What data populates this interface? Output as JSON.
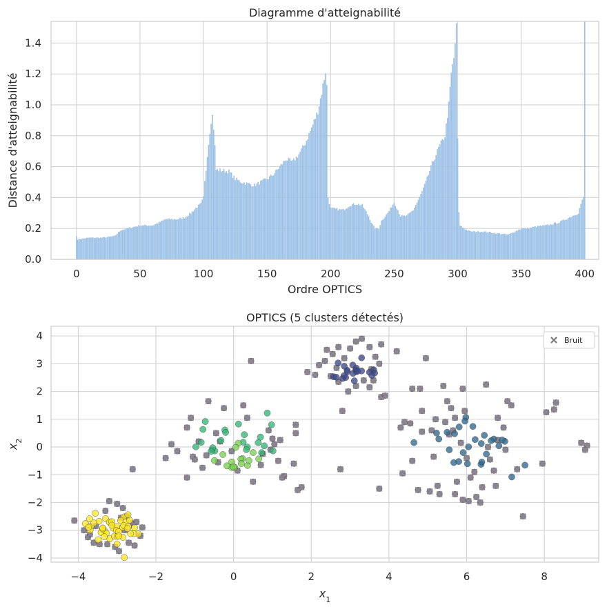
{
  "chart_data": [
    {
      "type": "bar",
      "title": "Diagramme d'atteignabilité",
      "xlabel": "Ordre OPTICS",
      "ylabel": "Distance d'atteignabilité",
      "xlim": [
        -20,
        411
      ],
      "ylim": [
        0,
        1.54
      ],
      "xticks": [
        0,
        50,
        100,
        150,
        200,
        250,
        300,
        350,
        400
      ],
      "yticks": [
        0.0,
        0.2,
        0.4,
        0.6,
        0.8,
        1.0,
        1.2,
        1.4
      ],
      "grid": true,
      "bar_color": "#9ec2e6",
      "breakpoints": [
        [
          0,
          0.15
        ],
        [
          1,
          0.13
        ],
        [
          10,
          0.14
        ],
        [
          20,
          0.14
        ],
        [
          30,
          0.15
        ],
        [
          35,
          0.19
        ],
        [
          40,
          0.2
        ],
        [
          45,
          0.21
        ],
        [
          50,
          0.22
        ],
        [
          60,
          0.22
        ],
        [
          68,
          0.25
        ],
        [
          70,
          0.26
        ],
        [
          80,
          0.26
        ],
        [
          85,
          0.27
        ],
        [
          90,
          0.3
        ],
        [
          95,
          0.34
        ],
        [
          98,
          0.36
        ],
        [
          100,
          0.4
        ],
        [
          101,
          0.5
        ],
        [
          102,
          0.58
        ],
        [
          103,
          0.68
        ],
        [
          104,
          0.75
        ],
        [
          105,
          0.83
        ],
        [
          106,
          0.9
        ],
        [
          107,
          0.93
        ],
        [
          108,
          0.85
        ],
        [
          109,
          0.73
        ],
        [
          110,
          0.58
        ],
        [
          120,
          0.57
        ],
        [
          125,
          0.52
        ],
        [
          130,
          0.5
        ],
        [
          135,
          0.49
        ],
        [
          140,
          0.48
        ],
        [
          145,
          0.5
        ],
        [
          150,
          0.52
        ],
        [
          155,
          0.55
        ],
        [
          160,
          0.6
        ],
        [
          165,
          0.65
        ],
        [
          170,
          0.63
        ],
        [
          175,
          0.68
        ],
        [
          180,
          0.75
        ],
        [
          185,
          0.85
        ],
        [
          190,
          0.96
        ],
        [
          193,
          1.08
        ],
        [
          196,
          1.22
        ],
        [
          197,
          1.12
        ],
        [
          198,
          0.4
        ],
        [
          200,
          0.33
        ],
        [
          210,
          0.32
        ],
        [
          215,
          0.35
        ],
        [
          220,
          0.36
        ],
        [
          225,
          0.35
        ],
        [
          230,
          0.28
        ],
        [
          232,
          0.24
        ],
        [
          235,
          0.2
        ],
        [
          238,
          0.2
        ],
        [
          240,
          0.25
        ],
        [
          245,
          0.3
        ],
        [
          250,
          0.37
        ],
        [
          253,
          0.32
        ],
        [
          255,
          0.28
        ],
        [
          260,
          0.28
        ],
        [
          265,
          0.32
        ],
        [
          270,
          0.4
        ],
        [
          275,
          0.5
        ],
        [
          280,
          0.62
        ],
        [
          285,
          0.72
        ],
        [
          290,
          0.8
        ],
        [
          293,
          1.0
        ],
        [
          295,
          1.2
        ],
        [
          297,
          1.3
        ],
        [
          299,
          1.5
        ],
        [
          300,
          0.78
        ],
        [
          301,
          0.3
        ],
        [
          302,
          0.22
        ],
        [
          305,
          0.2
        ],
        [
          310,
          0.18
        ],
        [
          320,
          0.18
        ],
        [
          330,
          0.17
        ],
        [
          340,
          0.16
        ],
        [
          345,
          0.18
        ],
        [
          350,
          0.2
        ],
        [
          355,
          0.2
        ],
        [
          360,
          0.21
        ],
        [
          370,
          0.22
        ],
        [
          380,
          0.24
        ],
        [
          385,
          0.26
        ],
        [
          390,
          0.28
        ],
        [
          395,
          0.3
        ],
        [
          397,
          0.36
        ],
        [
          399,
          0.4
        ],
        [
          400,
          1.54
        ]
      ]
    },
    {
      "type": "scatter",
      "title": "OPTICS (5 clusters détectés)",
      "xlabel": "x",
      "xlabel_sub": "1",
      "ylabel": "x",
      "ylabel_sub": "2",
      "xlim": [
        -4.7,
        9.4
      ],
      "ylim": [
        -4.15,
        4.35
      ],
      "xticks": [
        -4,
        -2,
        0,
        2,
        4,
        6,
        8
      ],
      "yticks": [
        -4,
        -3,
        -2,
        -1,
        0,
        1,
        2,
        3,
        4
      ],
      "grid": true,
      "legend": {
        "position": "top-right",
        "entries": [
          {
            "label": "Bruit",
            "marker": "x",
            "color": "#7a7a7a"
          }
        ]
      },
      "clusters": [
        {
          "color": "#fde725",
          "center": [
            -3.1,
            -2.95
          ],
          "spread": [
            0.35,
            0.3
          ],
          "count": 45
        },
        {
          "color": "#35b779",
          "center": [
            0.1,
            0.4
          ],
          "spread": [
            0.55,
            0.35
          ],
          "count": 22
        },
        {
          "color": "#7ad151",
          "center": [
            0.1,
            -0.5
          ],
          "spread": [
            0.3,
            0.25
          ],
          "count": 16
        },
        {
          "color": "#31688e",
          "center": [
            6.1,
            0.05
          ],
          "spread": [
            0.7,
            0.55
          ],
          "count": 28
        },
        {
          "color": "#3e4a89",
          "center": [
            2.95,
            2.75
          ],
          "spread": [
            0.3,
            0.2
          ],
          "count": 22
        }
      ],
      "noise": {
        "color": "#7b6b8f",
        "marker_color": "#8a8a8a",
        "points": [
          [
            -4.1,
            -2.65
          ],
          [
            -3.85,
            -3.0
          ],
          [
            -3.75,
            -3.25
          ],
          [
            -3.6,
            -3.45
          ],
          [
            -3.45,
            -3.5
          ],
          [
            -3.2,
            -1.95
          ],
          [
            -3.0,
            -2.05
          ],
          [
            -2.85,
            -2.2
          ],
          [
            -2.75,
            -2.5
          ],
          [
            -2.6,
            -2.75
          ],
          [
            -2.5,
            -2.7
          ],
          [
            -2.35,
            -2.9
          ],
          [
            -2.4,
            -3.2
          ],
          [
            -2.55,
            -3.55
          ],
          [
            -2.7,
            -3.45
          ],
          [
            -2.95,
            -3.75
          ],
          [
            -3.05,
            -3.6
          ],
          [
            -3.25,
            -3.5
          ],
          [
            -2.6,
            -0.8
          ],
          [
            -3.3,
            -2.3
          ],
          [
            -2.8,
            -3.0
          ],
          [
            -3.55,
            -2.85
          ],
          [
            -3.7,
            -3.15
          ],
          [
            -2.9,
            -2.55
          ],
          [
            -1.1,
            1.05
          ],
          [
            -0.65,
            1.65
          ],
          [
            -0.25,
            1.4
          ],
          [
            0.25,
            1.5
          ],
          [
            0.45,
            3.1
          ],
          [
            -1.6,
            0.1
          ],
          [
            -1.75,
            -0.4
          ],
          [
            -1.45,
            -0.15
          ],
          [
            -1.2,
            0.7
          ],
          [
            -1.05,
            -0.35
          ],
          [
            -0.8,
            -0.75
          ],
          [
            -0.55,
            -0.1
          ],
          [
            -0.45,
            0.5
          ],
          [
            -0.35,
            0.2
          ],
          [
            -0.05,
            -0.15
          ],
          [
            0.1,
            -0.85
          ],
          [
            0.5,
            -1.25
          ],
          [
            0.75,
            -0.25
          ],
          [
            0.9,
            0.6
          ],
          [
            1.05,
            0.1
          ],
          [
            1.15,
            -0.5
          ],
          [
            1.3,
            -1.05
          ],
          [
            1.55,
            -0.6
          ],
          [
            1.65,
            -1.55
          ],
          [
            1.75,
            -1.45
          ],
          [
            1.6,
            0.5
          ],
          [
            1.2,
            0.25
          ],
          [
            0.7,
            -0.65
          ],
          [
            -0.9,
            0.2
          ],
          [
            -0.4,
            -0.55
          ],
          [
            0.95,
            -0.1
          ],
          [
            -1.2,
            -1.1
          ],
          [
            1.6,
            0.8
          ],
          [
            -1.0,
            -0.45
          ],
          [
            0.35,
            1.05
          ],
          [
            -0.7,
            -0.3
          ],
          [
            1.0,
            0.3
          ],
          [
            1.25,
            -1.1
          ],
          [
            1.9,
            2.7
          ],
          [
            2.1,
            2.6
          ],
          [
            2.2,
            2.95
          ],
          [
            2.35,
            3.1
          ],
          [
            2.4,
            3.5
          ],
          [
            2.55,
            3.35
          ],
          [
            2.7,
            3.6
          ],
          [
            2.85,
            3.2
          ],
          [
            3.0,
            3.55
          ],
          [
            3.15,
            3.8
          ],
          [
            3.3,
            3.9
          ],
          [
            3.5,
            3.6
          ],
          [
            3.65,
            3.25
          ],
          [
            3.75,
            3.0
          ],
          [
            3.8,
            3.7
          ],
          [
            3.55,
            2.8
          ],
          [
            3.35,
            2.4
          ],
          [
            3.15,
            2.2
          ],
          [
            2.95,
            2.0
          ],
          [
            2.7,
            2.35
          ],
          [
            2.5,
            2.55
          ],
          [
            2.65,
            2.85
          ],
          [
            2.8,
            1.3
          ],
          [
            2.75,
            -0.8
          ],
          [
            3.5,
            2.15
          ],
          [
            3.6,
            2.4
          ],
          [
            3.8,
            1.8
          ],
          [
            3.9,
            1.85
          ],
          [
            4.2,
            3.45
          ],
          [
            4.3,
            0.7
          ],
          [
            4.35,
            -0.95
          ],
          [
            4.4,
            0.9
          ],
          [
            4.55,
            0.85
          ],
          [
            4.6,
            2.1
          ],
          [
            4.8,
            2.1
          ],
          [
            4.85,
            1.3
          ],
          [
            4.95,
            3.2
          ],
          [
            5.05,
            -1.6
          ],
          [
            5.25,
            -1.4
          ],
          [
            5.3,
            -1.7
          ],
          [
            5.4,
            2.2
          ],
          [
            5.55,
            0.45
          ],
          [
            5.6,
            1.4
          ],
          [
            5.7,
            1.05
          ],
          [
            5.75,
            -1.25
          ],
          [
            5.85,
            0.15
          ],
          [
            5.9,
            2.1
          ],
          [
            5.95,
            1.3
          ],
          [
            6.0,
            -0.4
          ],
          [
            6.1,
            -1.1
          ],
          [
            6.2,
            -0.9
          ],
          [
            6.25,
            -1.8
          ],
          [
            6.35,
            -2.0
          ],
          [
            6.4,
            -1.45
          ],
          [
            6.5,
            2.25
          ],
          [
            6.6,
            -0.45
          ],
          [
            6.7,
            -0.85
          ],
          [
            6.75,
            -1.4
          ],
          [
            6.8,
            1.05
          ],
          [
            6.95,
            0.7
          ],
          [
            7.05,
            1.65
          ],
          [
            7.15,
            1.5
          ],
          [
            7.3,
            -0.8
          ],
          [
            7.45,
            -2.5
          ],
          [
            7.95,
            -0.6
          ],
          [
            8.05,
            1.25
          ],
          [
            8.25,
            1.35
          ],
          [
            8.3,
            1.6
          ],
          [
            8.95,
            0.15
          ],
          [
            9.1,
            0.05
          ],
          [
            9.05,
            -0.1
          ],
          [
            4.75,
            -1.55
          ],
          [
            3.75,
            -1.5
          ],
          [
            5.7,
            -1.7
          ],
          [
            5.1,
            0.6
          ],
          [
            6.05,
            -1.95
          ],
          [
            5.2,
            1.0
          ],
          [
            4.85,
            0.55
          ],
          [
            6.55,
            0.0
          ],
          [
            5.5,
            1.65
          ],
          [
            5.45,
            0.9
          ],
          [
            4.6,
            -0.5
          ],
          [
            5.9,
            -1.9
          ],
          [
            6.8,
            0.25
          ],
          [
            7.0,
            -0.1
          ],
          [
            5.15,
            -0.35
          ],
          [
            5.65,
            0.6
          ]
        ]
      }
    }
  ]
}
